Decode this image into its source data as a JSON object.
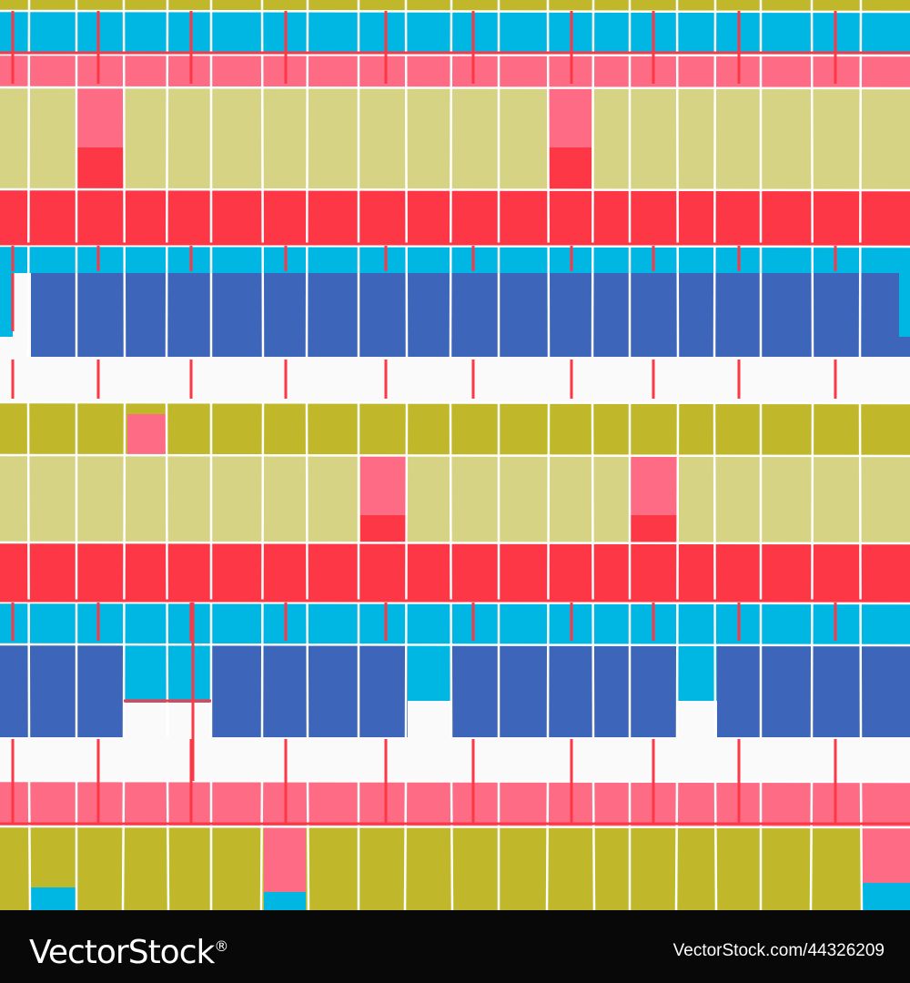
{
  "watermark": {
    "logo_text": "VectorStock",
    "logo_mark": "®",
    "credit": "VectorStock.com/44326209"
  },
  "palette": {
    "cyan": "#00b6e3",
    "pink": "#fe6b84",
    "khaki": "#d7d384",
    "red": "#fe3746",
    "blue": "#3d65b9",
    "olive": "#c0b82a",
    "white": "#fafafa",
    "line": "#ffffff"
  }
}
